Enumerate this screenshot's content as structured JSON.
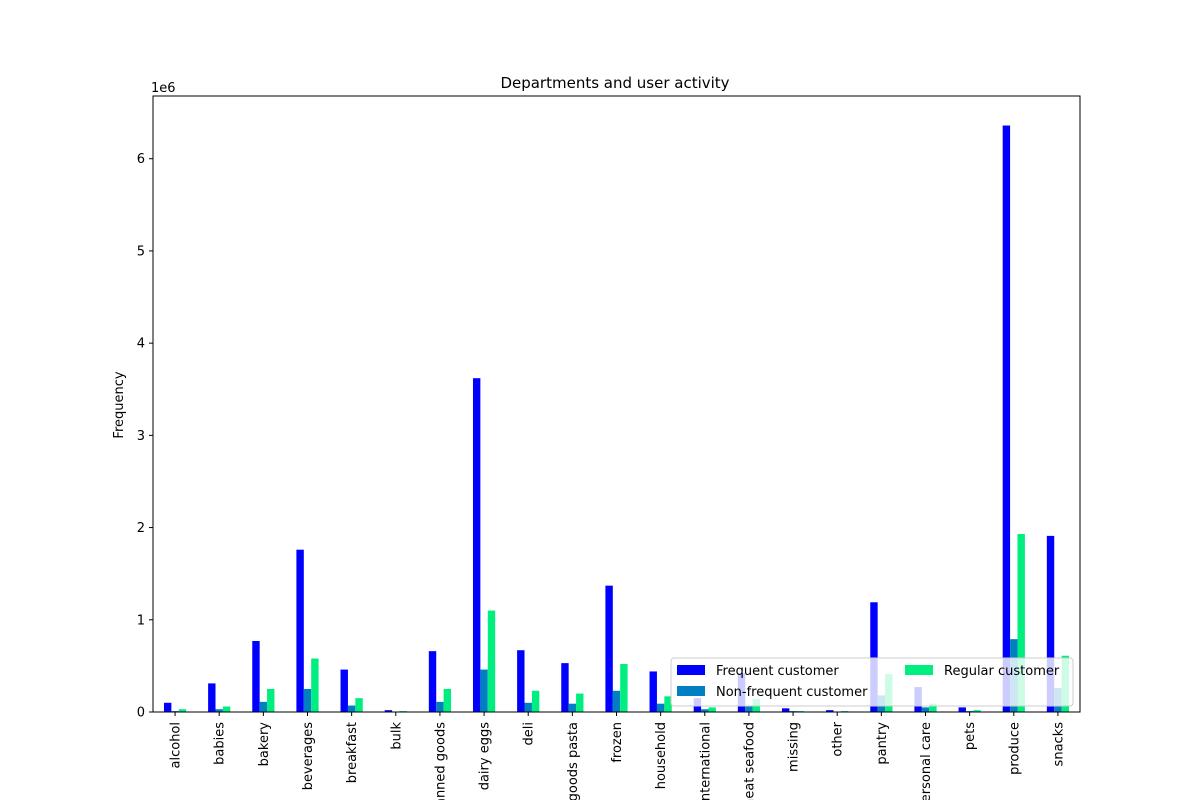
{
  "chart_data": {
    "type": "bar",
    "title": "Departments and user activity",
    "xlabel": "",
    "ylabel": "Frequency",
    "y_scale_label": "1e6",
    "ylim": [
      0,
      6.68
    ],
    "y_ticks": [
      "0",
      "1",
      "2",
      "3",
      "4",
      "5",
      "6"
    ],
    "grid": false,
    "legend_position": "lower right",
    "categories": [
      "alcohol",
      "babies",
      "bakery",
      "beverages",
      "breakfast",
      "bulk",
      "canned goods",
      "dairy eggs",
      "deli",
      "dry goods pasta",
      "frozen",
      "household",
      "international",
      "meat seafood",
      "missing",
      "other",
      "pantry",
      "personal care",
      "pets",
      "produce",
      "snacks"
    ],
    "series": [
      {
        "name": "Frequent customer",
        "color": "#0000ff",
        "values": [
          0.1,
          0.31,
          0.77,
          1.76,
          0.46,
          0.02,
          0.66,
          3.62,
          0.67,
          0.53,
          1.37,
          0.44,
          0.15,
          0.42,
          0.04,
          0.02,
          1.19,
          0.27,
          0.05,
          6.36,
          1.91
        ]
      },
      {
        "name": "Non-frequent customer",
        "color": "#0080c0",
        "values": [
          0.01,
          0.03,
          0.11,
          0.25,
          0.07,
          0.004,
          0.11,
          0.46,
          0.1,
          0.09,
          0.23,
          0.09,
          0.03,
          0.06,
          0.01,
          0.004,
          0.18,
          0.05,
          0.01,
          0.79,
          0.26
        ]
      },
      {
        "name": "Regular customer",
        "color": "#00ee7f",
        "values": [
          0.03,
          0.06,
          0.25,
          0.58,
          0.15,
          0.01,
          0.25,
          1.1,
          0.23,
          0.2,
          0.52,
          0.17,
          0.05,
          0.14,
          0.01,
          0.01,
          0.41,
          0.09,
          0.02,
          1.93,
          0.61
        ]
      }
    ]
  }
}
